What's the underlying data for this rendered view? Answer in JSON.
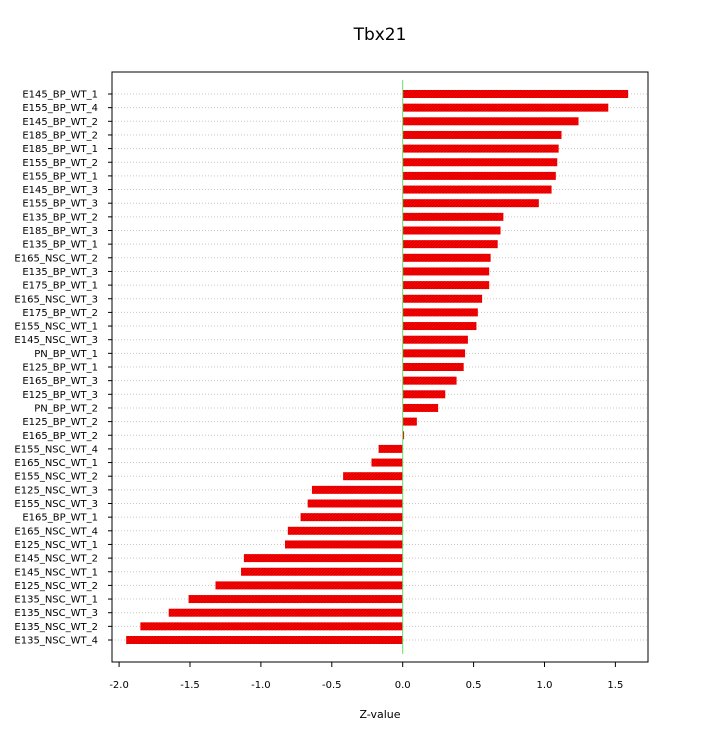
{
  "chart_data": {
    "type": "bar",
    "orientation": "horizontal",
    "title": "Tbx21",
    "xlabel": "Z-value",
    "ylabel": "",
    "xlim": [
      -2.05,
      1.73
    ],
    "xticks": [
      -2.0,
      -1.5,
      -1.0,
      -0.5,
      0.0,
      0.5,
      1.0,
      1.5
    ],
    "xtick_labels": [
      "-2.0",
      "-1.5",
      "-1.0",
      "-0.5",
      "0.0",
      "0.5",
      "1.0",
      "1.5"
    ],
    "grid": "horizontal dotted",
    "zero_line": true,
    "categories": [
      "E145_BP_WT_1",
      "E155_BP_WT_4",
      "E145_BP_WT_2",
      "E185_BP_WT_2",
      "E185_BP_WT_1",
      "E155_BP_WT_2",
      "E155_BP_WT_1",
      "E145_BP_WT_3",
      "E155_BP_WT_3",
      "E135_BP_WT_2",
      "E185_BP_WT_3",
      "E135_BP_WT_1",
      "E165_NSC_WT_2",
      "E135_BP_WT_3",
      "E175_BP_WT_1",
      "E165_NSC_WT_3",
      "E175_BP_WT_2",
      "E155_NSC_WT_1",
      "E145_NSC_WT_3",
      "PN_BP_WT_1",
      "E125_BP_WT_1",
      "E165_BP_WT_3",
      "E125_BP_WT_3",
      "PN_BP_WT_2",
      "E125_BP_WT_2",
      "E165_BP_WT_2",
      "E155_NSC_WT_4",
      "E165_NSC_WT_1",
      "E155_NSC_WT_2",
      "E125_NSC_WT_3",
      "E155_NSC_WT_3",
      "E165_BP_WT_1",
      "E165_NSC_WT_4",
      "E125_NSC_WT_1",
      "E145_NSC_WT_2",
      "E145_NSC_WT_1",
      "E125_NSC_WT_2",
      "E135_NSC_WT_1",
      "E135_NSC_WT_3",
      "E135_NSC_WT_2",
      "E135_NSC_WT_4"
    ],
    "values": [
      1.59,
      1.45,
      1.24,
      1.12,
      1.1,
      1.09,
      1.08,
      1.05,
      0.96,
      0.71,
      0.69,
      0.67,
      0.62,
      0.61,
      0.61,
      0.56,
      0.53,
      0.52,
      0.46,
      0.44,
      0.43,
      0.38,
      0.3,
      0.25,
      0.1,
      0.01,
      -0.17,
      -0.22,
      -0.42,
      -0.64,
      -0.67,
      -0.72,
      -0.81,
      -0.83,
      -1.12,
      -1.14,
      -1.32,
      -1.51,
      -1.65,
      -1.85,
      -1.95
    ],
    "colors": {
      "bar": "#ff0000",
      "bar_hatch": "#b00000",
      "zero_line": "#66dd66",
      "grid": "#c8c8c8",
      "frame": "#000000"
    }
  }
}
